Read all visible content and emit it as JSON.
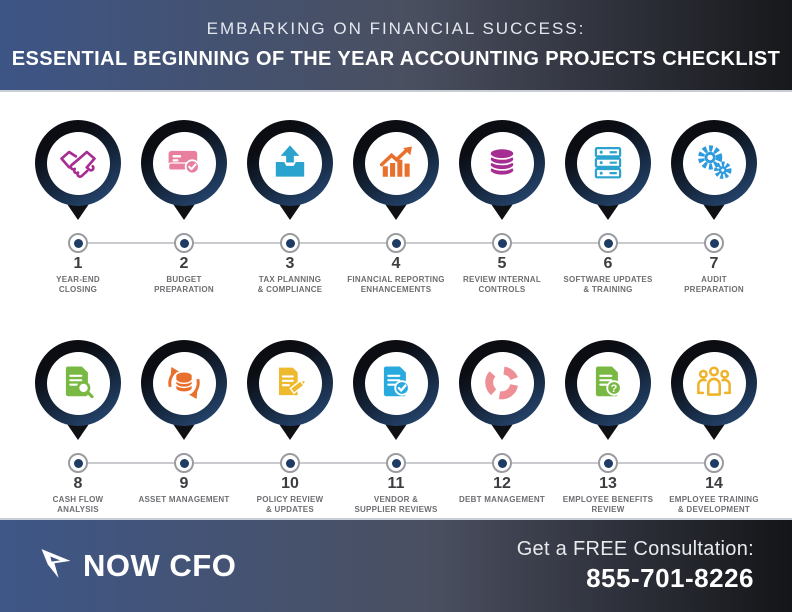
{
  "header": {
    "line1": "EMBARKING ON FINANCIAL SUCCESS:",
    "line2": "ESSENTIAL BEGINNING OF THE YEAR ACCOUNTING PROJECTS CHECKLIST"
  },
  "rows": [
    {
      "items": [
        {
          "number": "1",
          "label": "YEAR-END\nCLOSING",
          "icon": "handshake-icon",
          "color": "#a62d91"
        },
        {
          "number": "2",
          "label": "BUDGET\nPREPARATION",
          "icon": "credit-card-check-icon",
          "color": "#e87f9f"
        },
        {
          "number": "3",
          "label": "TAX PLANNING\n& COMPLIANCE",
          "icon": "tax-upload-icon",
          "color": "#2ba3cf"
        },
        {
          "number": "4",
          "label": "FINANCIAL REPORTING\nENHANCEMENTS",
          "icon": "growth-chart-icon",
          "color": "#e8702c"
        },
        {
          "number": "5",
          "label": "REVIEW INTERNAL\nCONTROLS",
          "icon": "coins-stack-icon",
          "color": "#a62d91"
        },
        {
          "number": "6",
          "label": "SOFTWARE UPDATES\n& TRAINING",
          "icon": "server-stack-icon",
          "color": "#2ba3cf"
        },
        {
          "number": "7",
          "label": "AUDIT\nPREPARATION",
          "icon": "gears-icon",
          "color": "#2e9bdf"
        }
      ]
    },
    {
      "items": [
        {
          "number": "8",
          "label": "CASH FLOW\nANALYSIS",
          "icon": "document-search-icon",
          "color": "#79b943"
        },
        {
          "number": "9",
          "label": "ASSET MANAGEMENT",
          "icon": "database-sync-icon",
          "color": "#e8702c"
        },
        {
          "number": "10",
          "label": "POLICY REVIEW\n& UPDATES",
          "icon": "notepad-pencil-icon",
          "color": "#eeb92d"
        },
        {
          "number": "11",
          "label": "VENDOR &\nSUPPLIER REVIEWS",
          "icon": "document-check-icon",
          "color": "#29aadf"
        },
        {
          "number": "12",
          "label": "DEBT MANAGEMENT",
          "icon": "donut-chart-icon",
          "color": "#ee8f96"
        },
        {
          "number": "13",
          "label": "EMPLOYEE BENEFITS\nREVIEW",
          "icon": "document-question-icon",
          "color": "#79b943"
        },
        {
          "number": "14",
          "label": "EMPLOYEE TRAINING\n& DEVELOPMENT",
          "icon": "team-icon",
          "color": "#efb32a"
        }
      ]
    }
  ],
  "footer": {
    "brand": "NOW CFO",
    "cta": "Get a FREE Consultation:",
    "phone": "855-701-8226"
  },
  "colors": {
    "header_gradient_left": "#3d5585",
    "header_gradient_right": "#17181b",
    "pin_ring_dark": "#0b0d13",
    "pin_ring_blue": "#2a4e7d",
    "timeline_line": "#c9cbce",
    "timeline_node": "#1e3c64",
    "number_text": "#3b3d40",
    "label_text": "#6c6e71"
  }
}
